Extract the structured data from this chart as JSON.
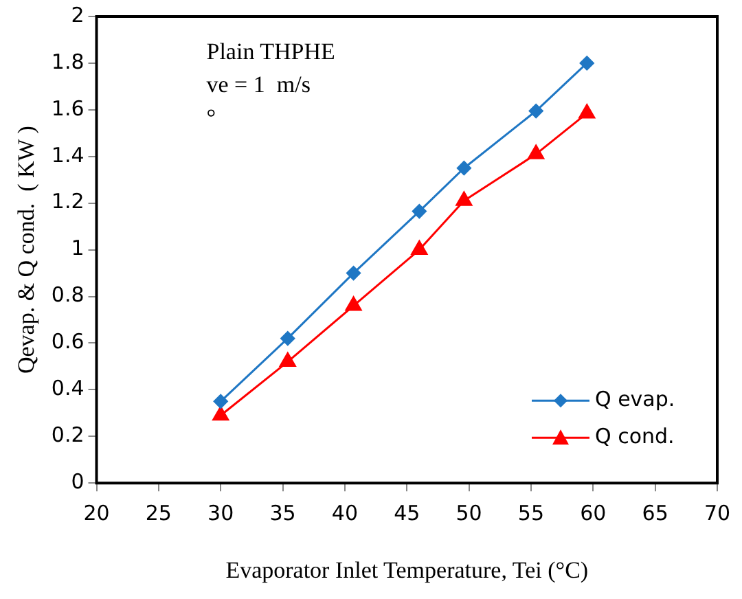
{
  "chart_data": {
    "type": "line",
    "xlabel": "Evaporator Inlet Temperature, Tei (°C)",
    "ylabel": "Qevap. & Q cond.  ( KW )",
    "annotations": [
      "Plain THPHE",
      "ve = 1  m/s",
      "°"
    ],
    "xlim": [
      20,
      70
    ],
    "xticks": [
      20,
      25,
      30,
      35,
      40,
      45,
      50,
      55,
      60,
      65,
      70
    ],
    "ylim": [
      0,
      2
    ],
    "yticks": [
      0,
      0.2,
      0.4,
      0.6,
      0.8,
      1,
      1.2,
      1.4,
      1.6,
      1.8,
      2
    ],
    "grid": false,
    "legend": "bottom right",
    "line_style": "solid",
    "series": [
      {
        "name": "Q evap.",
        "color": "#1f77c4",
        "marker": "diamond",
        "x": [
          30,
          35.4,
          40.7,
          46,
          49.6,
          55.4,
          59.5
        ],
        "values": [
          0.35,
          0.62,
          0.9,
          1.165,
          1.35,
          1.595,
          1.8
        ]
      },
      {
        "name": "Q cond.",
        "color": "#ff0000",
        "marker": "triangle",
        "x": [
          30,
          35.4,
          40.7,
          46,
          49.6,
          55.4,
          59.5
        ],
        "values": [
          0.29,
          0.52,
          0.76,
          1.0,
          1.21,
          1.41,
          1.585
        ]
      }
    ]
  }
}
